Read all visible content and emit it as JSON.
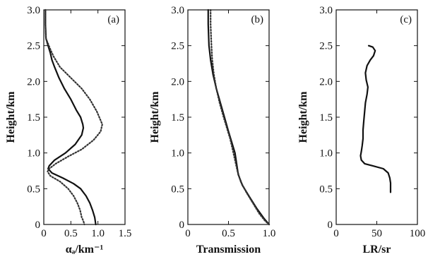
{
  "figure": {
    "panels_note": ""
  },
  "chart_data": [
    {
      "type": "line",
      "panel_label": "(a)",
      "xlabel": "αₐ/km⁻¹",
      "ylabel": "Height/km",
      "xlim": [
        0,
        1.5
      ],
      "ylim": [
        0,
        3.0
      ],
      "xticks": [
        "0",
        "0.5",
        "1.0",
        "1.5"
      ],
      "yticks": [
        "0",
        "0.5",
        "1.0",
        "1.5",
        "2.0",
        "2.5",
        "3.0"
      ],
      "grid": false,
      "legend": "none",
      "series": [
        {
          "style": "solid",
          "x": [
            0.03,
            0.03,
            0.04,
            0.08,
            0.12,
            0.15,
            0.2,
            0.28,
            0.38,
            0.5,
            0.6,
            0.68,
            0.72,
            0.73,
            0.7,
            0.58,
            0.4,
            0.2,
            0.1,
            0.08,
            0.15,
            0.35,
            0.55,
            0.68,
            0.78,
            0.85,
            0.9,
            0.94,
            0.96
          ],
          "y": [
            3.0,
            2.8,
            2.6,
            2.5,
            2.4,
            2.3,
            2.2,
            2.05,
            1.9,
            1.75,
            1.6,
            1.5,
            1.4,
            1.35,
            1.25,
            1.12,
            1.0,
            0.9,
            0.82,
            0.78,
            0.72,
            0.65,
            0.57,
            0.5,
            0.4,
            0.3,
            0.2,
            0.1,
            0.0
          ]
        },
        {
          "style": "dotted",
          "x": [
            0.03,
            0.03,
            0.04,
            0.12,
            0.18,
            0.3,
            0.5,
            0.7,
            0.85,
            0.98,
            1.08,
            1.05,
            0.92,
            0.7,
            0.45,
            0.22,
            0.1,
            0.07,
            0.12,
            0.3,
            0.45,
            0.55,
            0.62,
            0.67,
            0.7,
            0.73,
            0.75
          ],
          "y": [
            3.0,
            2.8,
            2.6,
            2.45,
            2.35,
            2.2,
            2.05,
            1.9,
            1.75,
            1.58,
            1.4,
            1.3,
            1.18,
            1.05,
            0.95,
            0.85,
            0.78,
            0.74,
            0.68,
            0.6,
            0.5,
            0.4,
            0.3,
            0.2,
            0.1,
            0.05,
            0.0
          ]
        }
      ]
    },
    {
      "type": "line",
      "panel_label": "(b)",
      "xlabel": "Transmission",
      "ylabel": "Height/km",
      "xlim": [
        0,
        1.0
      ],
      "ylim": [
        0,
        3.0
      ],
      "xticks": [
        "0",
        "0.5",
        "1.0"
      ],
      "yticks": [
        "0",
        "0.5",
        "1.0",
        "1.5",
        "2.0",
        "2.5",
        "3.0"
      ],
      "grid": false,
      "legend": "none",
      "series": [
        {
          "style": "solid",
          "x": [
            0.25,
            0.25,
            0.26,
            0.28,
            0.31,
            0.35,
            0.4,
            0.45,
            0.5,
            0.54,
            0.58,
            0.6,
            0.62,
            0.67,
            0.75,
            0.85,
            0.94,
            1.0
          ],
          "y": [
            3.0,
            2.8,
            2.5,
            2.3,
            2.1,
            1.9,
            1.7,
            1.5,
            1.3,
            1.15,
            1.0,
            0.85,
            0.7,
            0.55,
            0.4,
            0.22,
            0.08,
            0.0
          ]
        },
        {
          "style": "dotted",
          "x": [
            0.28,
            0.28,
            0.29,
            0.3,
            0.32,
            0.35,
            0.39,
            0.44,
            0.48,
            0.52,
            0.55,
            0.58,
            0.61,
            0.65,
            0.72,
            0.8,
            0.88,
            0.95,
            1.0
          ],
          "y": [
            3.0,
            2.8,
            2.5,
            2.3,
            2.1,
            1.9,
            1.7,
            1.5,
            1.35,
            1.2,
            1.05,
            0.9,
            0.75,
            0.6,
            0.45,
            0.3,
            0.15,
            0.05,
            0.0
          ]
        }
      ]
    },
    {
      "type": "line",
      "panel_label": "(c)",
      "xlabel": "LR/sr",
      "ylabel": "Height/km",
      "xlim": [
        0,
        100
      ],
      "ylim": [
        0,
        3.0
      ],
      "xticks": [
        "0",
        "50",
        "100"
      ],
      "yticks": [
        "0",
        "0.5",
        "1.0",
        "1.5",
        "2.0",
        "2.5",
        "3.0"
      ],
      "grid": false,
      "legend": "none",
      "series": [
        {
          "style": "solid",
          "x": [
            40,
            45,
            48,
            46,
            42,
            38,
            36,
            37,
            39,
            38,
            36,
            35,
            34,
            33,
            33,
            32,
            31,
            30,
            31,
            35,
            45,
            58,
            64,
            66,
            67,
            67,
            67
          ],
          "y": [
            2.5,
            2.48,
            2.43,
            2.36,
            2.3,
            2.22,
            2.12,
            2.02,
            1.92,
            1.82,
            1.7,
            1.58,
            1.45,
            1.32,
            1.2,
            1.1,
            1.02,
            0.96,
            0.9,
            0.85,
            0.82,
            0.78,
            0.72,
            0.65,
            0.58,
            0.5,
            0.45
          ]
        }
      ]
    }
  ]
}
